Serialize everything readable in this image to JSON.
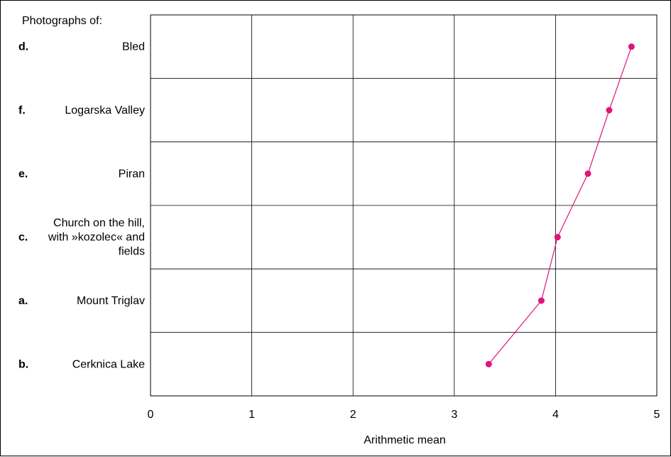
{
  "chart_data": {
    "type": "line",
    "y_header": "Photographs of:",
    "xlabel": "Arithmetic mean",
    "xlim": [
      0,
      5
    ],
    "x_ticks": [
      "0",
      "1",
      "2",
      "3",
      "4",
      "5"
    ],
    "grid": true,
    "line_color": "#e0137a",
    "categories": [
      {
        "letter": "d.",
        "label_lines": [
          "Bled"
        ],
        "value": 4.75
      },
      {
        "letter": "f.",
        "label_lines": [
          "Logarska Valley"
        ],
        "value": 4.53
      },
      {
        "letter": "e.",
        "label_lines": [
          "Piran"
        ],
        "value": 4.32
      },
      {
        "letter": "c.",
        "label_lines": [
          "Church on the hill,",
          "with »kozolec« and",
          "fields"
        ],
        "value": 4.02
      },
      {
        "letter": "a.",
        "label_lines": [
          "Mount Triglav"
        ],
        "value": 3.86
      },
      {
        "letter": "b.",
        "label_lines": [
          "Cerknica Lake"
        ],
        "value": 3.34
      }
    ]
  }
}
